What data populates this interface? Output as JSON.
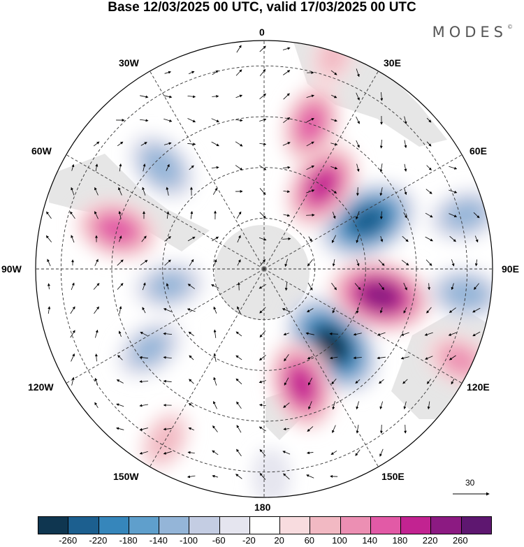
{
  "title": "Base 12/03/2025 00 UTC, valid 17/03/2025 00 UTC",
  "brand": "MODES",
  "brand_mark": "©",
  "meridian_labels": {
    "deg0": "0",
    "deg30e": "30E",
    "deg60e": "60E",
    "deg90e": "90E",
    "deg120e": "120E",
    "deg150e": "150E",
    "deg180": "180",
    "deg150w": "150W",
    "deg120w": "120W",
    "deg90w": "90W",
    "deg60w": "60W",
    "deg30w": "30W"
  },
  "reference_vector": {
    "value": "30"
  },
  "colorbar": {
    "colors": [
      "#0f3650",
      "#1c5f8f",
      "#3686bb",
      "#5f9fcc",
      "#94b5d8",
      "#c4cde3",
      "#e5e5ef",
      "#ffffff",
      "#f8dcdf",
      "#f2b9c3",
      "#ec8fb3",
      "#e25aa6",
      "#c22391",
      "#8c1a82",
      "#5e1770"
    ],
    "ticks": [
      "-260",
      "-220",
      "-180",
      "-140",
      "-100",
      "-60",
      "-20",
      "20",
      "60",
      "100",
      "140",
      "180",
      "220",
      "260"
    ]
  },
  "anomaly_features": [
    {
      "lon": 65,
      "colat": 45,
      "value": -230
    },
    {
      "lon": 138,
      "colat": 40,
      "value": -260
    },
    {
      "lon": 103,
      "colat": 47,
      "value": 230
    },
    {
      "lon": 162,
      "colat": 48,
      "value": 180
    },
    {
      "lon": 18,
      "colat": 60,
      "value": 140
    },
    {
      "lon": 35,
      "colat": 40,
      "value": 180
    },
    {
      "lon": -45,
      "colat": 57,
      "value": -120
    },
    {
      "lon": -75,
      "colat": 60,
      "value": 150
    },
    {
      "lon": -100,
      "colat": 38,
      "value": -100
    },
    {
      "lon": -125,
      "colat": 55,
      "value": -100
    },
    {
      "lon": 18,
      "colat": 88,
      "value": 60
    },
    {
      "lon": 75,
      "colat": 82,
      "value": -110
    },
    {
      "lon": 97,
      "colat": 80,
      "value": -120
    },
    {
      "lon": 115,
      "colat": 85,
      "value": 100
    },
    {
      "lon": -150,
      "colat": 78,
      "value": 70
    },
    {
      "lon": 178,
      "colat": 82,
      "value": -40
    }
  ]
}
